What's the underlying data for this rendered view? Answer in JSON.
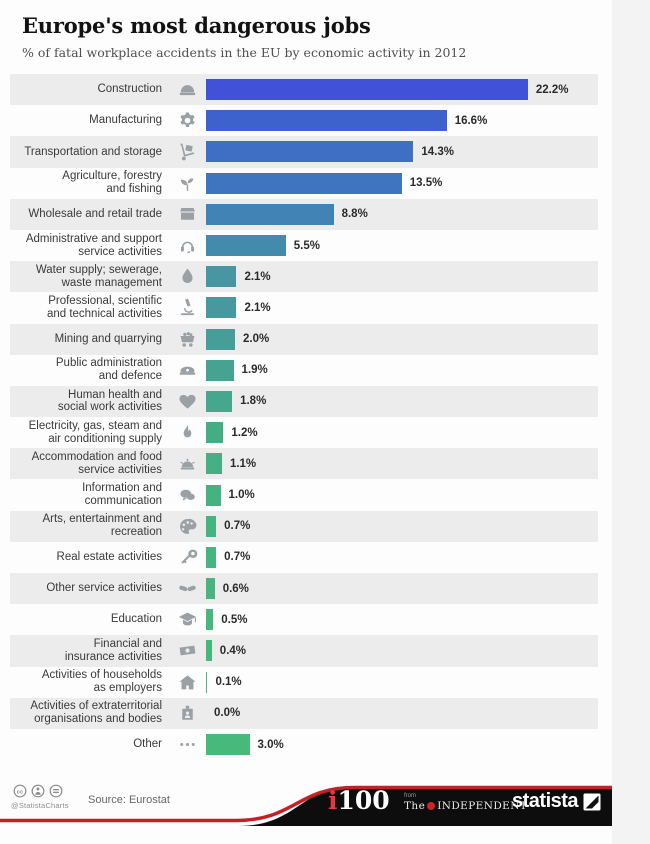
{
  "header": {
    "title": "Europe's most dangerous jobs",
    "subtitle": "% of fatal workplace accidents in the EU by economic activity in 2012"
  },
  "chart_data": {
    "type": "bar",
    "orientation": "horizontal",
    "title": "Europe's most dangerous jobs",
    "subtitle": "% of fatal workplace accidents in the EU by economic activity in 2012",
    "unit": "%",
    "xlim": [
      0,
      25
    ],
    "grid": false,
    "legend": false,
    "source": "Eurostat",
    "categories": [
      "Construction",
      "Manufacturing",
      "Transportation and storage",
      "Agriculture, forestry and fishing",
      "Wholesale and retail trade",
      "Administrative and support service activities",
      "Water supply; sewerage, waste management",
      "Professional, scientific and technical activities",
      "Mining and quarrying",
      "Public administration and defence",
      "Human health and social work activities",
      "Electricity, gas, steam and air conditioning supply",
      "Accommodation and food service activities",
      "Information and communication",
      "Arts, entertainment and recreation",
      "Real estate activities",
      "Other service activities",
      "Education",
      "Financial and insurance activities",
      "Activities of households as employers",
      "Activities of extraterritorial organisations and bodies",
      "Other"
    ],
    "values": [
      22.2,
      16.6,
      14.3,
      13.5,
      8.8,
      5.5,
      2.1,
      2.1,
      2.0,
      1.9,
      1.8,
      1.2,
      1.1,
      1.0,
      0.7,
      0.7,
      0.6,
      0.5,
      0.4,
      0.1,
      0.0,
      3.0
    ],
    "rows": [
      {
        "lines": [
          "Construction"
        ],
        "icon": "hard-hat",
        "value": 22.2,
        "value_label": "22.2%",
        "color": "#4152d9"
      },
      {
        "lines": [
          "Manufacturing"
        ],
        "icon": "gear",
        "value": 16.6,
        "value_label": "16.6%",
        "color": "#3e62cd"
      },
      {
        "lines": [
          "Transportation and storage"
        ],
        "icon": "hand-truck",
        "value": 14.3,
        "value_label": "14.3%",
        "color": "#3e6fc5"
      },
      {
        "lines": [
          "Agriculture, forestry",
          "and fishing"
        ],
        "icon": "seedling",
        "value": 13.5,
        "value_label": "13.5%",
        "color": "#3f75c0"
      },
      {
        "lines": [
          "Wholesale and retail trade"
        ],
        "icon": "shop",
        "value": 8.8,
        "value_label": "8.8%",
        "color": "#4283b5"
      },
      {
        "lines": [
          "Administrative and support",
          "service activities"
        ],
        "icon": "headset",
        "value": 5.5,
        "value_label": "5.5%",
        "color": "#438bad"
      },
      {
        "lines": [
          "Water supply; sewerage,",
          "waste management"
        ],
        "icon": "water-drop",
        "value": 2.1,
        "value_label": "2.1%",
        "color": "#4896a3"
      },
      {
        "lines": [
          "Professional, scientific",
          "and technical activities"
        ],
        "icon": "microscope",
        "value": 2.1,
        "value_label": "2.1%",
        "color": "#47999f"
      },
      {
        "lines": [
          "Mining and quarrying"
        ],
        "icon": "mine-cart",
        "value": 2.0,
        "value_label": "2.0%",
        "color": "#479e98"
      },
      {
        "lines": [
          "Public administration",
          "and defence"
        ],
        "icon": "police-cap",
        "value": 1.9,
        "value_label": "1.9%",
        "color": "#46a392"
      },
      {
        "lines": [
          "Human health and",
          "social work activities"
        ],
        "icon": "heart",
        "value": 1.8,
        "value_label": "1.8%",
        "color": "#46a78d"
      },
      {
        "lines": [
          "Electricity, gas, steam and",
          "air conditioning supply"
        ],
        "icon": "flame",
        "value": 1.2,
        "value_label": "1.2%",
        "color": "#45ad86"
      },
      {
        "lines": [
          "Accommodation and food",
          "service activities"
        ],
        "icon": "service-bell",
        "value": 1.1,
        "value_label": "1.1%",
        "color": "#45b083"
      },
      {
        "lines": [
          "Information and",
          "communication"
        ],
        "icon": "speech-bubbles",
        "value": 1.0,
        "value_label": "1.0%",
        "color": "#45b281"
      },
      {
        "lines": [
          "Arts, entertainment and",
          "recreation"
        ],
        "icon": "paint-palette",
        "value": 0.7,
        "value_label": "0.7%",
        "color": "#46b47f"
      },
      {
        "lines": [
          "Real estate activities"
        ],
        "icon": "key",
        "value": 0.7,
        "value_label": "0.7%",
        "color": "#46b57e"
      },
      {
        "lines": [
          "Other service activities"
        ],
        "icon": "handshake",
        "value": 0.6,
        "value_label": "0.6%",
        "color": "#46b67e"
      },
      {
        "lines": [
          "Education"
        ],
        "icon": "graduation-cap",
        "value": 0.5,
        "value_label": "0.5%",
        "color": "#46b77d"
      },
      {
        "lines": [
          "Financial and",
          "insurance activities"
        ],
        "icon": "banknote",
        "value": 0.4,
        "value_label": "0.4%",
        "color": "#47b87c"
      },
      {
        "lines": [
          "Activities of households",
          "as employers"
        ],
        "icon": "house",
        "value": 0.1,
        "value_label": "0.1%",
        "color": "#47b97c"
      },
      {
        "lines": [
          "Activities of extraterritorial",
          "organisations and bodies"
        ],
        "icon": "id-badge",
        "value": 0.0,
        "value_label": "0.0%",
        "color": "#47ba7b"
      },
      {
        "lines": [
          "Other"
        ],
        "icon": "ellipsis",
        "value": 3.0,
        "value_label": "3.0%",
        "color": "#47ba7b"
      }
    ]
  },
  "footer": {
    "license_icons": [
      "cc",
      "attribution",
      "no-derivatives"
    ],
    "handle": "@StatistaCharts",
    "source": "Source: Eurostat",
    "i100": {
      "i": "i",
      "num": "100"
    },
    "independent": {
      "from": "from",
      "the": "The",
      "name": "INDEPENDENT"
    },
    "statista_label": "statista",
    "colors": {
      "stripe_red": "#c42127",
      "bar_black": "#0d0d0d"
    }
  }
}
